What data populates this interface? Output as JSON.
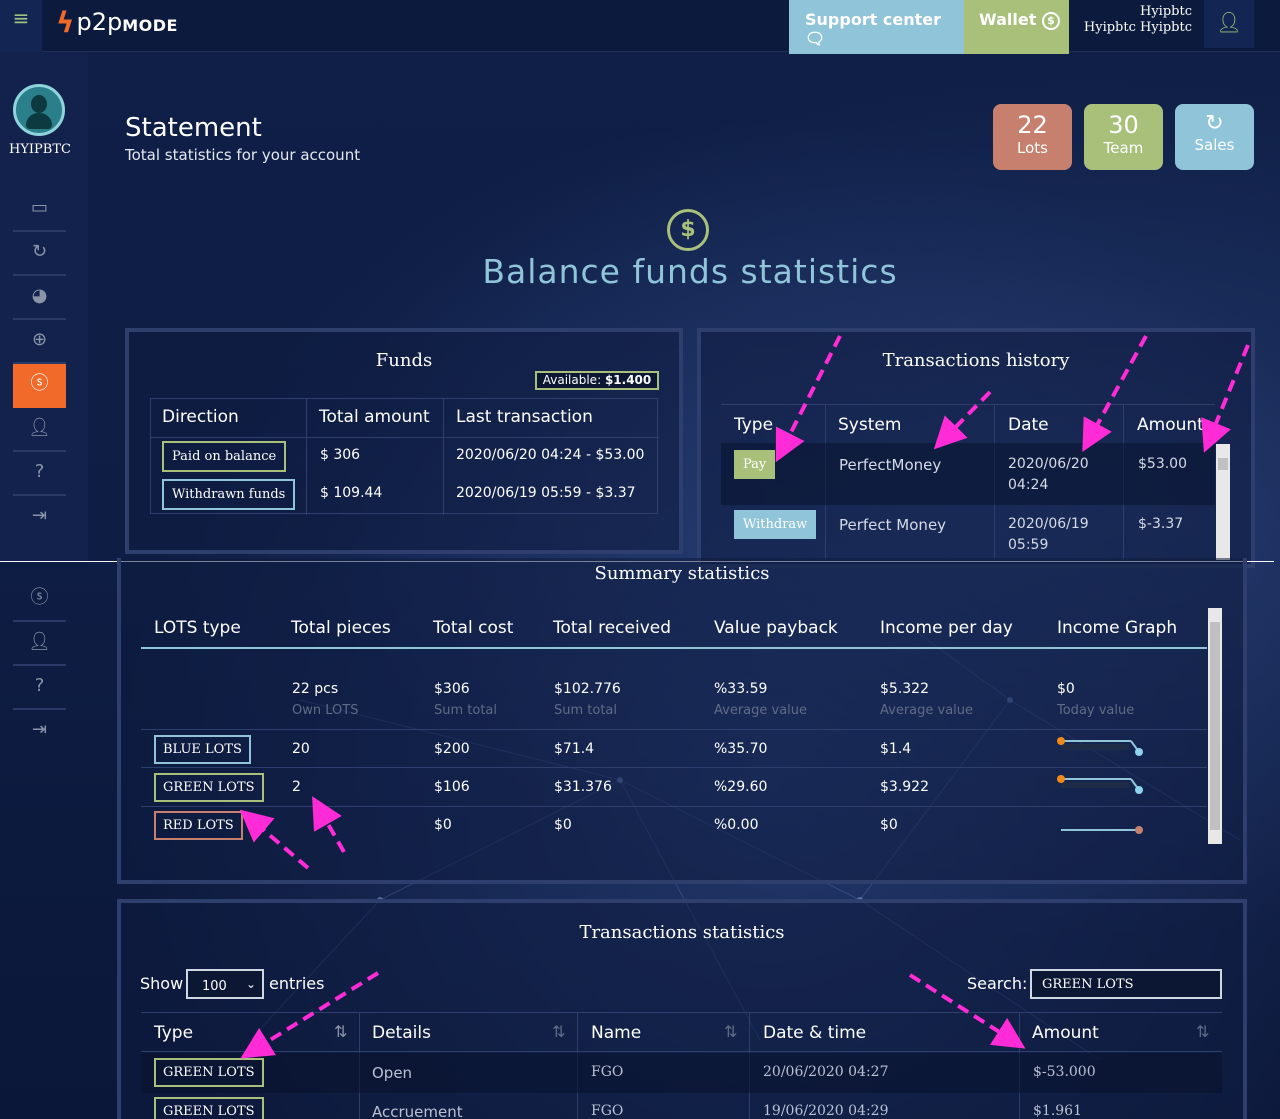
{
  "header": {
    "logo_p2p": "p2p",
    "logo_mode": "MODE",
    "support_label": "Support center",
    "wallet_label": "Wallet",
    "user_line1": "Hyipbtc",
    "user_line2": "Hyipbtc Hyipbtc"
  },
  "sidebar": {
    "username": "HYIPBTC",
    "items": [
      "monitor-icon",
      "refresh-icon",
      "pie-chart-icon",
      "target-icon",
      "dollar-icon",
      "user-icon",
      "help-icon",
      "logout-icon"
    ],
    "active_index": 4
  },
  "page": {
    "title": "Statement",
    "subtitle": "Total statistics for your account"
  },
  "stats": [
    {
      "value": "22",
      "label": "Lots",
      "color": "#c8806e"
    },
    {
      "value": "30",
      "label": "Team",
      "color": "#a9c07b"
    },
    {
      "value": "",
      "label": "Sales",
      "color": "#8fc4d9"
    }
  ],
  "balance_title": "Balance funds statistics",
  "funds": {
    "title": "Funds",
    "available_label": "Available:",
    "available_value": "$1.400",
    "headers": [
      "Direction",
      "Total amount",
      "Last transaction"
    ],
    "rows": [
      {
        "direction": "Paid on balance",
        "amount": "$ 306",
        "last": "2020/06/20 04:24 - $53.00"
      },
      {
        "direction": "Withdrawn funds",
        "amount": "$ 109.44",
        "last": "2020/06/19 05:59 - $3.37"
      }
    ]
  },
  "transactions_history": {
    "title": "Transactions history",
    "headers": [
      "Type",
      "System",
      "Date",
      "Amount"
    ],
    "rows": [
      {
        "type": "Pay",
        "system": "PerfectMoney",
        "date1": "2020/06/20",
        "date2": "04:24",
        "amount": "$53.00"
      },
      {
        "type": "Withdraw",
        "system": "Perfect Money",
        "date1": "2020/06/19",
        "date2": "05:59",
        "amount": "$-3.37"
      }
    ]
  },
  "summary": {
    "title": "Summary statistics",
    "headers": [
      "LOTS type",
      "Total pieces",
      "Total cost",
      "Total received",
      "Value payback",
      "Income per day",
      "Income Graph"
    ],
    "totals": {
      "pieces": "22 pcs",
      "pieces_sub": "Own LOTS",
      "cost": "$306",
      "cost_sub": "Sum total",
      "received": "$102.776",
      "received_sub": "Sum total",
      "payback": "%33.59",
      "payback_sub": "Average value",
      "income": "$5.322",
      "income_sub": "Average value",
      "graph": "$0",
      "graph_sub": "Today value"
    },
    "rows": [
      {
        "type": "BLUE LOTS",
        "pieces": "20",
        "cost": "$200",
        "received": "$71.4",
        "payback": "%35.70",
        "income": "$1.4",
        "color": "#8fc4d9"
      },
      {
        "type": "GREEN LOTS",
        "pieces": "2",
        "cost": "$106",
        "received": "$31.376",
        "payback": "%29.60",
        "income": "$3.922",
        "color": "#a9c07b"
      },
      {
        "type": "RED LOTS",
        "pieces": "",
        "cost": "$0",
        "received": "$0",
        "payback": "%0.00",
        "income": "$0",
        "color": "#c8806e"
      }
    ]
  },
  "tx_stats": {
    "title": "Transactions statistics",
    "show_label": "Show",
    "entries_value": "100",
    "entries_label": "entries",
    "search_label": "Search:",
    "search_value": "GREEN LOTS",
    "headers": [
      "Type",
      "Details",
      "Name",
      "Date & time",
      "Amount"
    ],
    "rows": [
      {
        "type": "GREEN LOTS",
        "details": "Open",
        "name": "FGO",
        "datetime": "20/06/2020 04:27",
        "amount": "$-53.000"
      },
      {
        "type": "GREEN LOTS",
        "details": "Accruement",
        "name": "FGO",
        "datetime": "19/06/2020 04:29",
        "amount": "$1.961"
      }
    ]
  },
  "colors": {
    "accent_orange": "#f26a2a",
    "green": "#a9c07b",
    "blue": "#8fc4d9",
    "red": "#c8806e",
    "arrow_pink": "#ff2bd6"
  }
}
